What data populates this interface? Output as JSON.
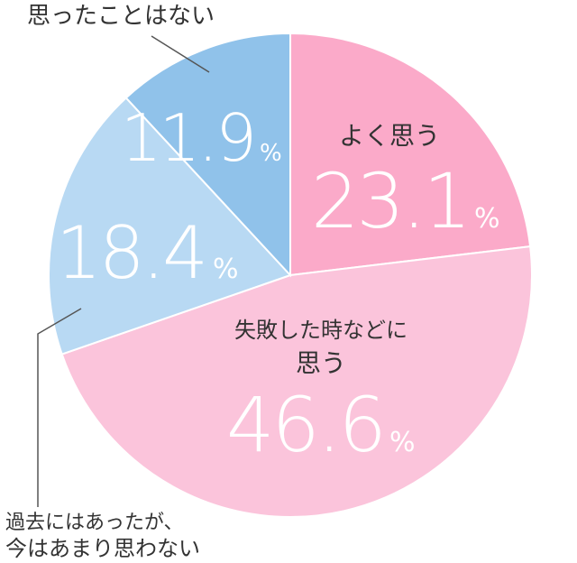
{
  "chart_data": {
    "type": "pie",
    "start": "top",
    "direction": "clockwise",
    "unit": "%",
    "slices": [
      {
        "label_lines": [
          "よく思う"
        ],
        "value": "23.1",
        "color": "#fbaac9"
      },
      {
        "label_lines": [
          "失敗した時などに",
          "思う"
        ],
        "value": "46.6",
        "color": "#fbc4db"
      },
      {
        "label_lines": [
          "過去にはあったが、",
          "今はあまり思わない"
        ],
        "value": "18.4",
        "color": "#b8d9f3"
      },
      {
        "label_lines": [
          "思ったことはない"
        ],
        "value": "11.9",
        "color": "#90c2ea"
      }
    ]
  }
}
